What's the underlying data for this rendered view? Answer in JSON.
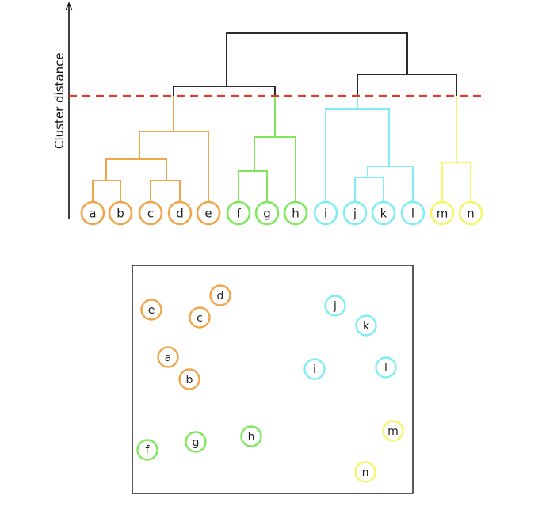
{
  "axis": {
    "y_label": "Cluster distance"
  },
  "colors": {
    "orange": "#f0a54a",
    "green": "#7ce85a",
    "cyan": "#7eeef2",
    "yellow": "#f5f56a",
    "black": "#111111",
    "threshold": "#e03a2a"
  },
  "clusters": [
    {
      "name": "orange",
      "color": "#f0a54a",
      "members": [
        "a",
        "b",
        "c",
        "d",
        "e"
      ]
    },
    {
      "name": "green",
      "color": "#7ce85a",
      "members": [
        "f",
        "g",
        "h"
      ]
    },
    {
      "name": "cyan",
      "color": "#7eeef2",
      "members": [
        "i",
        "j",
        "k",
        "l"
      ]
    },
    {
      "name": "yellow",
      "color": "#f5f56a",
      "members": [
        "m",
        "n"
      ]
    }
  ],
  "dendrogram": {
    "leaves": [
      {
        "label": "a",
        "cluster": "orange"
      },
      {
        "label": "b",
        "cluster": "orange"
      },
      {
        "label": "c",
        "cluster": "orange"
      },
      {
        "label": "d",
        "cluster": "orange"
      },
      {
        "label": "e",
        "cluster": "orange"
      },
      {
        "label": "f",
        "cluster": "green"
      },
      {
        "label": "g",
        "cluster": "green"
      },
      {
        "label": "h",
        "cluster": "green"
      },
      {
        "label": "i",
        "cluster": "cyan"
      },
      {
        "label": "j",
        "cluster": "cyan"
      },
      {
        "label": "k",
        "cluster": "cyan"
      },
      {
        "label": "l",
        "cluster": "cyan"
      },
      {
        "label": "m",
        "cluster": "yellow"
      },
      {
        "label": "n",
        "cluster": "yellow"
      }
    ]
  },
  "scatter": {
    "points": [
      {
        "label": "a",
        "cluster": "orange"
      },
      {
        "label": "b",
        "cluster": "orange"
      },
      {
        "label": "c",
        "cluster": "orange"
      },
      {
        "label": "d",
        "cluster": "orange"
      },
      {
        "label": "e",
        "cluster": "orange"
      },
      {
        "label": "f",
        "cluster": "green"
      },
      {
        "label": "g",
        "cluster": "green"
      },
      {
        "label": "h",
        "cluster": "green"
      },
      {
        "label": "i",
        "cluster": "cyan"
      },
      {
        "label": "j",
        "cluster": "cyan"
      },
      {
        "label": "k",
        "cluster": "cyan"
      },
      {
        "label": "l",
        "cluster": "cyan"
      },
      {
        "label": "m",
        "cluster": "yellow"
      },
      {
        "label": "n",
        "cluster": "yellow"
      }
    ]
  }
}
